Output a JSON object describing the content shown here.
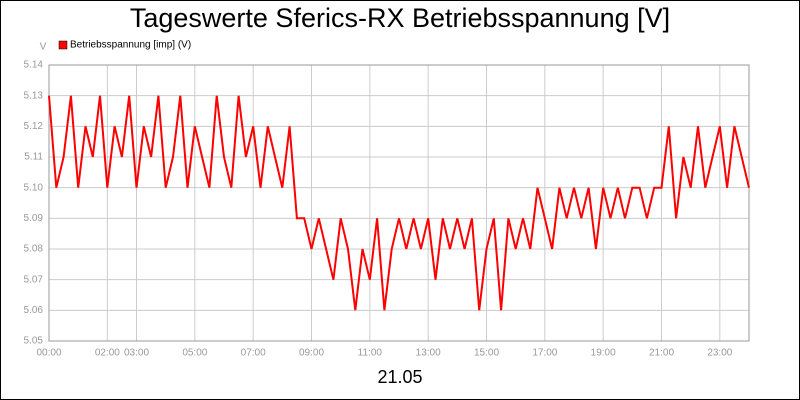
{
  "chart_data": {
    "type": "line",
    "title": "Tageswerte Sferics-RX Betriebsspannung [V]",
    "y_label": "V",
    "x_label": "21.05",
    "legend": "top-left",
    "grid": true,
    "xlim": [
      0,
      24
    ],
    "xticks": [
      {
        "value": 0,
        "label": "00:00"
      },
      {
        "value": 2,
        "label": "02:00"
      },
      {
        "value": 3,
        "label": "03:00"
      },
      {
        "value": 5,
        "label": "05:00"
      },
      {
        "value": 7,
        "label": "07:00"
      },
      {
        "value": 9,
        "label": "09:00"
      },
      {
        "value": 11,
        "label": "11:00"
      },
      {
        "value": 13,
        "label": "13:00"
      },
      {
        "value": 15,
        "label": "15:00"
      },
      {
        "value": 17,
        "label": "17:00"
      },
      {
        "value": 19,
        "label": "19:00"
      },
      {
        "value": 21,
        "label": "21:00"
      },
      {
        "value": 23,
        "label": "23:00"
      }
    ],
    "ylim": [
      5.05,
      5.14
    ],
    "yticks": [
      5.05,
      5.06,
      5.07,
      5.08,
      5.09,
      {
        "value": 5.1,
        "label": "5.10"
      },
      5.11,
      5.12,
      5.13,
      5.14
    ],
    "x": [
      0,
      0.25,
      0.5,
      0.75,
      1,
      1.25,
      1.5,
      1.75,
      2,
      2.25,
      2.5,
      2.75,
      3,
      3.25,
      3.5,
      3.75,
      4,
      4.25,
      4.5,
      4.75,
      5,
      5.25,
      5.5,
      5.75,
      6,
      6.25,
      6.5,
      6.75,
      7,
      7.25,
      7.5,
      7.75,
      8,
      8.25,
      8.5,
      8.75,
      9,
      9.25,
      9.5,
      9.75,
      10,
      10.25,
      10.5,
      10.75,
      11,
      11.25,
      11.5,
      11.75,
      12,
      12.25,
      12.5,
      12.75,
      13,
      13.25,
      13.5,
      13.75,
      14,
      14.25,
      14.5,
      14.75,
      15,
      15.25,
      15.5,
      15.75,
      16,
      16.25,
      16.5,
      16.75,
      17,
      17.25,
      17.5,
      17.75,
      18,
      18.25,
      18.5,
      18.75,
      19,
      19.25,
      19.5,
      19.75,
      20,
      20.25,
      20.5,
      20.75,
      21,
      21.25,
      21.5,
      21.75,
      22,
      22.25,
      22.5,
      22.75,
      23,
      23.25,
      23.5,
      23.75,
      24
    ],
    "series": [
      {
        "name": "Betriebsspannung [imp] (V)",
        "color": "#ff0000",
        "values": [
          5.13,
          5.1,
          5.11,
          5.13,
          5.1,
          5.12,
          5.11,
          5.13,
          5.1,
          5.12,
          5.11,
          5.13,
          5.1,
          5.12,
          5.11,
          5.13,
          5.1,
          5.11,
          5.13,
          5.1,
          5.12,
          5.11,
          5.1,
          5.13,
          5.11,
          5.1,
          5.13,
          5.11,
          5.12,
          5.1,
          5.12,
          5.11,
          5.1,
          5.12,
          5.09,
          5.09,
          5.08,
          5.09,
          5.08,
          5.07,
          5.09,
          5.08,
          5.06,
          5.08,
          5.07,
          5.09,
          5.06,
          5.08,
          5.09,
          5.08,
          5.09,
          5.08,
          5.09,
          5.07,
          5.09,
          5.08,
          5.09,
          5.08,
          5.09,
          5.06,
          5.08,
          5.09,
          5.06,
          5.09,
          5.08,
          5.09,
          5.08,
          5.1,
          5.09,
          5.08,
          5.1,
          5.09,
          5.1,
          5.09,
          5.1,
          5.08,
          5.1,
          5.09,
          5.1,
          5.09,
          5.1,
          5.1,
          5.09,
          5.1,
          5.1,
          5.12,
          5.09,
          5.11,
          5.1,
          5.12,
          5.1,
          5.11,
          5.12,
          5.1,
          5.12,
          5.11,
          5.1
        ]
      }
    ]
  }
}
